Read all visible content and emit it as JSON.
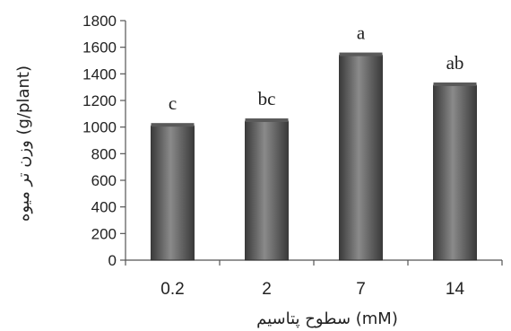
{
  "chart_data": {
    "type": "bar",
    "categories": [
      "0.2",
      "2",
      "7",
      "14"
    ],
    "values": [
      1010,
      1045,
      1540,
      1315
    ],
    "data_labels": [
      "c",
      "bc",
      "a",
      "ab"
    ],
    "ylabel": "وزن تر میوه (g/plant)",
    "xlabel": "سطوح پتاسیم (mM)",
    "ylim": [
      0,
      1800
    ],
    "yticks": [
      0,
      200,
      400,
      600,
      800,
      1000,
      1200,
      1400,
      1600,
      1800
    ],
    "grid": false,
    "legend": "none",
    "colors": {
      "bar_dark": "#3a3a3a",
      "bar_light": "#8a8a8a",
      "axis": "#555555"
    }
  }
}
